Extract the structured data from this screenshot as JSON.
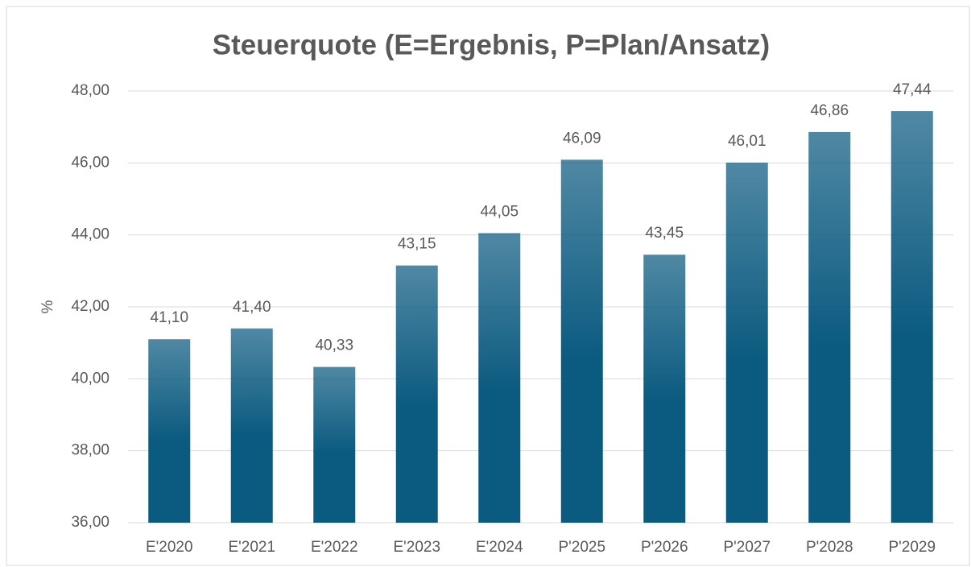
{
  "chart_data": {
    "type": "bar",
    "title": "Steuerquote (E=Ergebnis, P=Plan/Ansatz)",
    "y_label": "%",
    "categories": [
      "E'2020",
      "E'2021",
      "E'2022",
      "E'2023",
      "E'2024",
      "P'2025",
      "P'2026",
      "P'2027",
      "P'2028",
      "P'2029"
    ],
    "values": [
      41.1,
      41.4,
      40.33,
      43.15,
      44.05,
      46.09,
      43.45,
      46.01,
      46.86,
      47.44
    ],
    "value_labels": [
      "41,10",
      "41,40",
      "40,33",
      "43,15",
      "44,05",
      "46,09",
      "43,45",
      "46,01",
      "46,86",
      "47,44"
    ],
    "color": "#0b5a80",
    "ylim": [
      36,
      48
    ],
    "yticks": [
      {
        "value": 36,
        "label": "36,00"
      },
      {
        "value": 38,
        "label": "38,00"
      },
      {
        "value": 40,
        "label": "40,00"
      },
      {
        "value": 42,
        "label": "42,00"
      },
      {
        "value": 44,
        "label": "44,00"
      },
      {
        "value": 46,
        "label": "46,00"
      },
      {
        "value": 48,
        "label": "48,00"
      }
    ],
    "grid": true
  }
}
